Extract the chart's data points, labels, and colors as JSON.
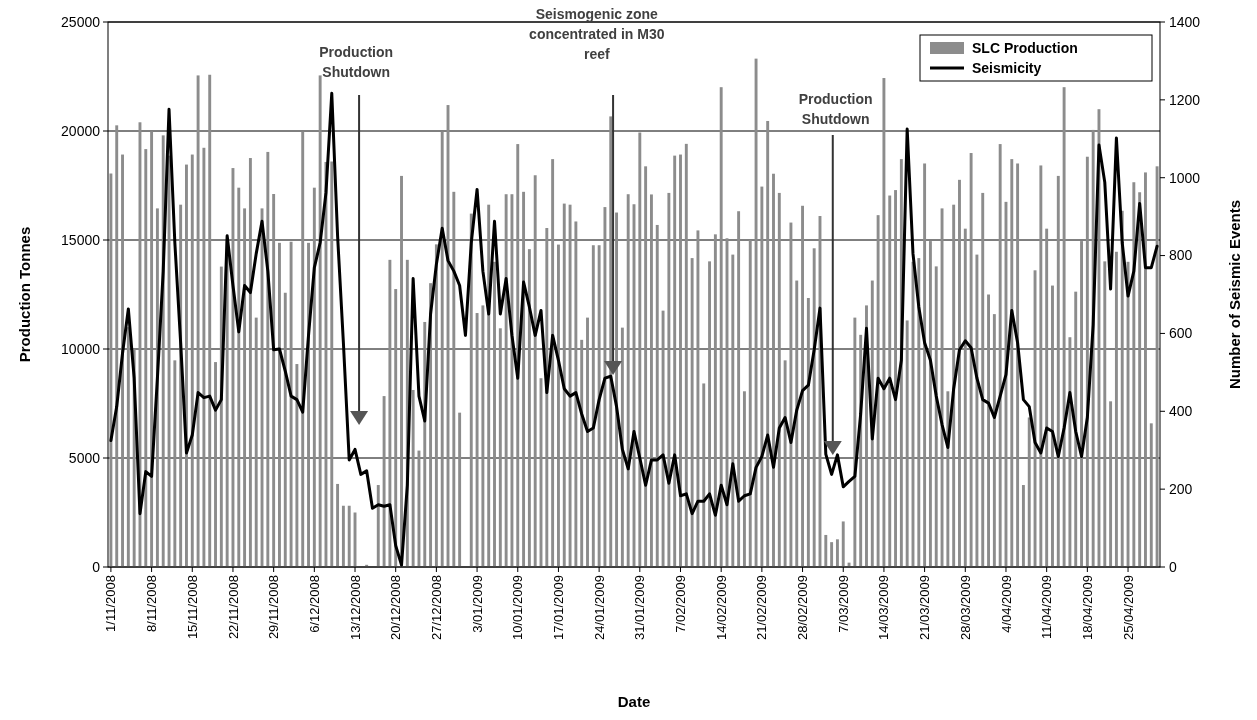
{
  "chart_data": {
    "type": "bar",
    "xlabel": "Date",
    "ylabel": "Production Tonnes",
    "y2label": "Number of Seismic Events",
    "categories": [
      "1/11/2008",
      null,
      null,
      null,
      null,
      null,
      null,
      "8/11/2008",
      null,
      null,
      null,
      null,
      null,
      null,
      "15/11/2008",
      null,
      null,
      null,
      null,
      null,
      null,
      "22/11/2008",
      null,
      null,
      null,
      null,
      null,
      null,
      "29/11/2008",
      null,
      null,
      null,
      null,
      null,
      null,
      "6/12/2008",
      null,
      null,
      null,
      null,
      null,
      null,
      "13/12/2008",
      null,
      null,
      null,
      null,
      null,
      null,
      "20/12/2008",
      null,
      null,
      null,
      null,
      null,
      null,
      "27/12/2008",
      null,
      null,
      null,
      null,
      null,
      null,
      "3/01/2009",
      null,
      null,
      null,
      null,
      null,
      null,
      "10/01/2009",
      null,
      null,
      null,
      null,
      null,
      null,
      "17/01/2009",
      null,
      null,
      null,
      null,
      null,
      null,
      "24/01/2009",
      null,
      null,
      null,
      null,
      null,
      null,
      "31/01/2009",
      null,
      null,
      null,
      null,
      null,
      null,
      "7/02/2009",
      null,
      null,
      null,
      null,
      null,
      null,
      "14/02/2009",
      null,
      null,
      null,
      null,
      null,
      null,
      "21/02/2009",
      null,
      null,
      null,
      null,
      null,
      null,
      "28/02/2009",
      null,
      null,
      null,
      null,
      null,
      null,
      "7/03/2009",
      null,
      null,
      null,
      null,
      null,
      null,
      "14/03/2009",
      null,
      null,
      null,
      null,
      null,
      null,
      "21/03/2009",
      null,
      null,
      null,
      null,
      null,
      null,
      "28/03/2009",
      null,
      null,
      null,
      null,
      null,
      null,
      "4/04/2009",
      null,
      null,
      null,
      null,
      null,
      null,
      "11/04/2009",
      null,
      null,
      null,
      null,
      null,
      null,
      "18/04/2009",
      null,
      null,
      null,
      null,
      null,
      null,
      "25/04/2009",
      null,
      null,
      null,
      null,
      null
    ],
    "series": [
      {
        "name": "SLC Production",
        "color": "#8c8c8c",
        "values": [
          18050,
          20260,
          18920,
          11000,
          10000,
          20400,
          19170,
          19980,
          16450,
          19800,
          18870,
          9480,
          16620,
          18460,
          18920,
          22550,
          19230,
          22580,
          9400,
          13780,
          15000,
          18300,
          17400,
          16450,
          18760,
          11440,
          16450,
          19040,
          17110,
          14870,
          12580,
          14920,
          9310,
          19970,
          14870,
          17400,
          22550,
          18580,
          18600,
          3810,
          2810,
          2810,
          2500,
          0,
          100,
          0,
          3760,
          7840,
          14090,
          12750,
          17940,
          14090,
          8120,
          5340,
          11240,
          13020,
          14800,
          19970,
          21190,
          17210,
          7080,
          null,
          16210,
          11650,
          12000,
          16620,
          14000,
          10950,
          17100,
          17100,
          19400,
          17210,
          14580,
          17970,
          8660,
          15550,
          18710,
          14790,
          16670,
          16620,
          15850,
          10420,
          11440,
          14760,
          14760,
          16510,
          20670,
          16260,
          10980,
          17100,
          16640,
          19930,
          18380,
          17090,
          15690,
          11760,
          17160,
          18870,
          18920,
          19410,
          14170,
          15440,
          8420,
          14020,
          15260,
          22010,
          15080,
          14330,
          16320,
          8060,
          15000,
          23320,
          17450,
          20460,
          18040,
          17160,
          9480,
          15800,
          13140,
          16570,
          12340,
          14620,
          16100,
          1470,
          1140,
          1270,
          2090,
          200,
          11440,
          10650,
          12000,
          13140,
          16140,
          22430,
          17040,
          17290,
          18710,
          11310,
          14000,
          14170,
          18510,
          14950,
          13790,
          16450,
          8060,
          16620,
          17760,
          15520,
          18990,
          14330,
          17160,
          12500,
          11600,
          19400,
          16750,
          18710,
          18510,
          3760,
          6860,
          13610,
          18420,
          15520,
          12910,
          17940,
          22010,
          10540,
          12630,
          14950,
          18820,
          20050,
          21000,
          14020,
          7600,
          14460,
          16340,
          14000,
          17650,
          17190,
          18100,
          6590,
          18380
        ]
      },
      {
        "name": "Seismicity",
        "type": "line",
        "axis": "y2",
        "color": "#000000",
        "values": [
          325,
          412,
          549,
          663,
          485,
          137,
          245,
          233,
          485,
          760,
          1176,
          833,
          576,
          293,
          339,
          448,
          435,
          439,
          403,
          430,
          851,
          723,
          604,
          723,
          705,
          805,
          888,
          760,
          558,
          560,
          503,
          439,
          430,
          398,
          595,
          769,
          833,
          961,
          1217,
          851,
          576,
          275,
          302,
          238,
          247,
          151,
          160,
          156,
          160,
          55,
          5,
          210,
          741,
          439,
          375,
          650,
          778,
          870,
          787,
          760,
          723,
          595,
          833,
          970,
          760,
          650,
          888,
          650,
          741,
          595,
          485,
          732,
          668,
          595,
          659,
          448,
          595,
          531,
          458,
          439,
          448,
          393,
          348,
          357,
          430,
          485,
          490,
          412,
          302,
          252,
          348,
          280,
          210,
          275,
          275,
          288,
          215,
          288,
          183,
          188,
          137,
          169,
          169,
          188,
          133,
          210,
          160,
          265,
          169,
          183,
          188,
          256,
          284,
          339,
          256,
          357,
          384,
          320,
          403,
          453,
          467,
          558,
          665,
          290,
          238,
          288,
          206,
          220,
          233,
          393,
          613,
          329,
          485,
          458,
          485,
          430,
          531,
          1125,
          805,
          668,
          576,
          531,
          439,
          366,
          307,
          458,
          558,
          581,
          563,
          485,
          430,
          421,
          384,
          439,
          494,
          659,
          576,
          430,
          412,
          320,
          293,
          357,
          348,
          284,
          357,
          448,
          348,
          284,
          384,
          622,
          1084,
          988,
          714,
          1102,
          833,
          696,
          760,
          934,
          769,
          769,
          824
        ]
      }
    ],
    "ylim": [
      0,
      25000
    ],
    "yticks": [
      0,
      5000,
      10000,
      15000,
      20000,
      25000
    ],
    "y2lim": [
      0,
      1400
    ],
    "y2ticks": [
      0,
      200,
      400,
      600,
      800,
      1000,
      1200,
      1400
    ],
    "grid": "y",
    "legend": "top right",
    "annotations": [
      "Production\nShutdown",
      "Seismogenic zone\nconcentrated in M30\nreef",
      "Production\nShutdown"
    ]
  }
}
